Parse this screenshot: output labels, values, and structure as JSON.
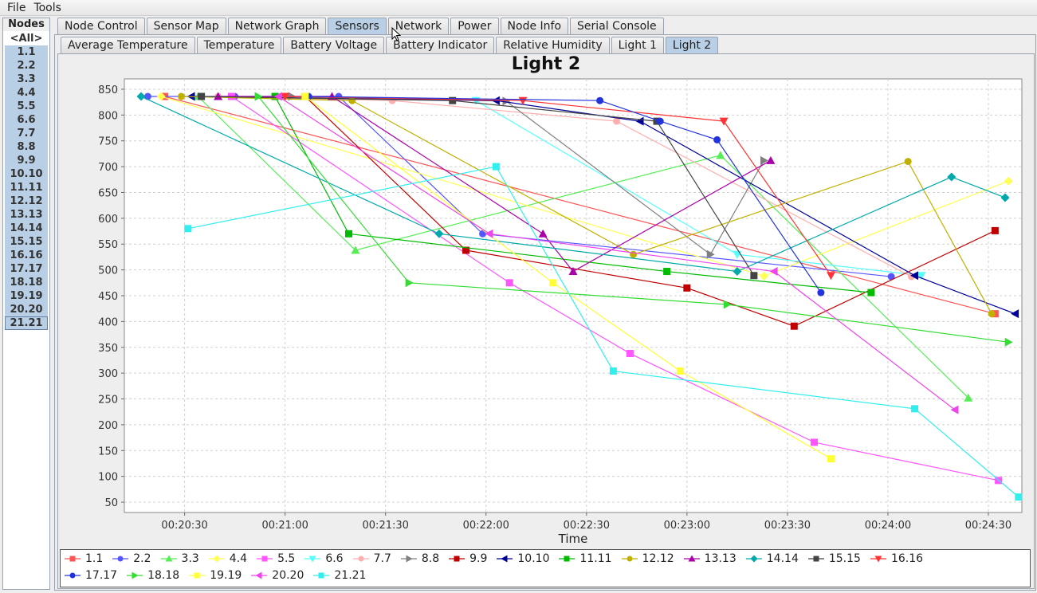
{
  "menu": {
    "file": "File",
    "tools": "Tools"
  },
  "nodes_panel": {
    "title": "Nodes",
    "items": [
      "<All>",
      "1.1",
      "2.2",
      "3.3",
      "4.4",
      "5.5",
      "6.6",
      "7.7",
      "8.8",
      "9.9",
      "10.10",
      "11.11",
      "12.12",
      "13.13",
      "14.14",
      "15.15",
      "16.16",
      "17.17",
      "18.18",
      "19.19",
      "20.20",
      "21.21"
    ],
    "selected": "21.21"
  },
  "main_tabs": [
    "Node Control",
    "Sensor Map",
    "Network Graph",
    "Sensors",
    "Network",
    "Power",
    "Node Info",
    "Serial Console"
  ],
  "main_tab_active": "Sensors",
  "sensor_tabs": [
    "Average Temperature",
    "Temperature",
    "Battery Voltage",
    "Battery Indicator",
    "Relative Humidity",
    "Light 1",
    "Light 2"
  ],
  "sensor_tab_active": "Light 2",
  "chart_data": {
    "type": "line",
    "title": "Light 2",
    "xlabel": "Time",
    "ylabel": "",
    "xticks": [
      "00:20:30",
      "00:21:00",
      "00:21:30",
      "00:22:00",
      "00:22:30",
      "00:23:00",
      "00:23:30",
      "00:24:00",
      "00:24:30"
    ],
    "xlim_seconds": [
      1212,
      1480
    ],
    "ylim": [
      30,
      870
    ],
    "yticks": [
      50,
      100,
      150,
      200,
      250,
      300,
      350,
      400,
      450,
      500,
      550,
      600,
      650,
      700,
      750,
      800,
      850
    ],
    "grid": true,
    "legend_position": "bottom",
    "series": [
      {
        "name": "1.1",
        "color": "#ff5555",
        "marker": "square",
        "points": [
          [
            1224,
            836
          ],
          [
            1472,
            415
          ]
        ]
      },
      {
        "name": "2.2",
        "color": "#5555ff",
        "marker": "circle",
        "points": [
          [
            1219,
            836
          ],
          [
            1245,
            836
          ],
          [
            1276,
            836
          ],
          [
            1319,
            570
          ],
          [
            1441,
            487
          ]
        ]
      },
      {
        "name": "3.3",
        "color": "#55ee55",
        "marker": "triangle-up",
        "points": [
          [
            1234,
            836
          ],
          [
            1281,
            538
          ],
          [
            1390,
            722
          ],
          [
            1464,
            252
          ]
        ]
      },
      {
        "name": "4.4",
        "color": "#ffff55",
        "marker": "diamond",
        "points": [
          [
            1223,
            836
          ],
          [
            1403,
            488
          ],
          [
            1476,
            672
          ]
        ]
      },
      {
        "name": "5.5",
        "color": "#ff55ff",
        "marker": "square",
        "points": [
          [
            1244,
            836
          ],
          [
            1327,
            475
          ],
          [
            1363,
            338
          ],
          [
            1418,
            166
          ],
          [
            1473,
            92
          ]
        ]
      },
      {
        "name": "6.6",
        "color": "#55ffff",
        "marker": "triangle-down",
        "points": [
          [
            1317,
            828
          ],
          [
            1395,
            530
          ],
          [
            1450,
            489
          ]
        ]
      },
      {
        "name": "7.7",
        "color": "#ffafaf",
        "marker": "circle",
        "points": [
          [
            1240,
            836
          ],
          [
            1292,
            828
          ],
          [
            1359,
            788
          ],
          [
            1447,
            487
          ]
        ]
      },
      {
        "name": "8.8",
        "color": "#808080",
        "marker": "triangle-right",
        "points": [
          [
            1262,
            836
          ],
          [
            1326,
            827
          ],
          [
            1387,
            530
          ],
          [
            1403,
            712
          ]
        ]
      },
      {
        "name": "9.9",
        "color": "#c00000",
        "marker": "square",
        "points": [
          [
            1266,
            836
          ],
          [
            1314,
            538
          ],
          [
            1380,
            465
          ],
          [
            1412,
            391
          ],
          [
            1472,
            576
          ]
        ]
      },
      {
        "name": "10.10",
        "color": "#000099",
        "marker": "triangle-left",
        "points": [
          [
            1232,
            836
          ],
          [
            1323,
            828
          ],
          [
            1366,
            788
          ],
          [
            1448,
            489
          ],
          [
            1478,
            415
          ]
        ]
      },
      {
        "name": "11.11",
        "color": "#00bb00",
        "marker": "square",
        "points": [
          [
            1257,
            836
          ],
          [
            1279,
            570
          ],
          [
            1374,
            497
          ],
          [
            1435,
            456
          ]
        ]
      },
      {
        "name": "12.12",
        "color": "#c0b000",
        "marker": "circle",
        "points": [
          [
            1229,
            836
          ],
          [
            1280,
            828
          ],
          [
            1364,
            530
          ],
          [
            1446,
            710
          ],
          [
            1471,
            415
          ]
        ]
      },
      {
        "name": "13.13",
        "color": "#aa00aa",
        "marker": "triangle-up",
        "points": [
          [
            1240,
            836
          ],
          [
            1274,
            836
          ],
          [
            1337,
            570
          ],
          [
            1346,
            497
          ],
          [
            1405,
            712
          ]
        ]
      },
      {
        "name": "14.14",
        "color": "#00aaaa",
        "marker": "diamond",
        "points": [
          [
            1217,
            836
          ],
          [
            1306,
            570
          ],
          [
            1395,
            497
          ],
          [
            1459,
            680
          ],
          [
            1475,
            640
          ]
        ]
      },
      {
        "name": "15.15",
        "color": "#444444",
        "marker": "square",
        "points": [
          [
            1235,
            836
          ],
          [
            1310,
            828
          ],
          [
            1371,
            788
          ],
          [
            1400,
            489
          ]
        ]
      },
      {
        "name": "16.16",
        "color": "#ff3333",
        "marker": "triangle-down",
        "points": [
          [
            1260,
            836
          ],
          [
            1331,
            828
          ],
          [
            1391,
            788
          ],
          [
            1423,
            489
          ]
        ]
      },
      {
        "name": "17.17",
        "color": "#2233dd",
        "marker": "circle",
        "points": [
          [
            1267,
            836
          ],
          [
            1354,
            828
          ],
          [
            1372,
            788
          ],
          [
            1389,
            752
          ],
          [
            1420,
            456
          ]
        ]
      },
      {
        "name": "18.18",
        "color": "#33dd33",
        "marker": "triangle-right",
        "points": [
          [
            1252,
            836
          ],
          [
            1297,
            475
          ],
          [
            1392,
            433
          ],
          [
            1476,
            360
          ]
        ]
      },
      {
        "name": "19.19",
        "color": "#ffff33",
        "marker": "square",
        "points": [
          [
            1266,
            836
          ],
          [
            1340,
            475
          ],
          [
            1378,
            304
          ],
          [
            1423,
            134
          ]
        ]
      },
      {
        "name": "20.20",
        "color": "#ee44ee",
        "marker": "triangle-left",
        "points": [
          [
            1258,
            836
          ],
          [
            1321,
            570
          ],
          [
            1406,
            497
          ],
          [
            1460,
            229
          ]
        ]
      },
      {
        "name": "21.21",
        "color": "#33eeee",
        "marker": "square",
        "points": [
          [
            1231,
            580
          ],
          [
            1323,
            700
          ],
          [
            1358,
            304
          ],
          [
            1448,
            231
          ],
          [
            1479,
            60
          ]
        ]
      }
    ]
  }
}
